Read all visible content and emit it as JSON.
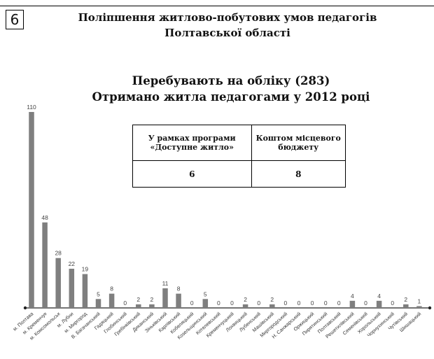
{
  "page": {
    "number": "6",
    "heading_line1": "Поліпшення житлово-побутових умов педагогів",
    "heading_line2": "Полтавської області"
  },
  "info_table": {
    "col1_header": "У рамках програми «Доступне житло»",
    "col2_header": "Коштом місцевого бюджету",
    "col1_value": "6",
    "col2_value": "8"
  },
  "chart_data": {
    "type": "bar",
    "title": "Перебувають на обліку (283)",
    "subtitle": "Отримано житла педагогами у 2012 році",
    "categories": [
      "м. Полтава",
      "м. Кременчук",
      "м. Комсомольськ",
      "м. Лубни",
      "м. Миргород",
      "В. Багачанський",
      "Гадяцький",
      "Глобинський",
      "Гребінківський",
      "Диканський",
      "Зіньківський",
      "Карлівський",
      "Кобеляцький",
      "Козельщинський",
      "Котелевський",
      "Кременчуцький",
      "Лохвицький",
      "Лубенський",
      "Машівський",
      "Миргородський",
      "Н. Санжарський",
      "Оржицький",
      "Пирятинський",
      "Полтавський",
      "Решетилівський",
      "Семенівський",
      "Хорольський",
      "Чорнухинський",
      "Чутівський",
      "Шишацький"
    ],
    "values": [
      110,
      48,
      28,
      22,
      19,
      5,
      8,
      0,
      2,
      2,
      11,
      8,
      0,
      5,
      0,
      0,
      2,
      0,
      2,
      0,
      0,
      0,
      0,
      0,
      4,
      0,
      4,
      0,
      2,
      1
    ],
    "ylim": [
      0,
      110
    ],
    "grid": false,
    "bar_color": "#7f7f7f"
  }
}
